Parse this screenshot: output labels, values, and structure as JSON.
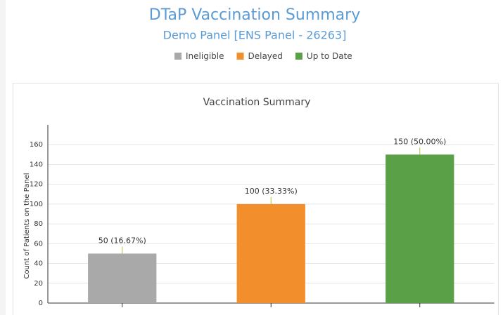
{
  "title": "DTaP Vaccination Summary",
  "subtitle": "Demo Panel [ENS Panel - 26263]",
  "chart_data": {
    "type": "bar",
    "title": "Vaccination Summary",
    "y_label": "Count of Patients on the Panel",
    "series": [
      {
        "name": "Ineligible",
        "color": "#a9a9a9",
        "values": [
          50
        ],
        "value_labels": [
          "50 (16.67%)"
        ]
      },
      {
        "name": "Delayed",
        "color": "#f28f2c",
        "values": [
          100
        ],
        "value_labels": [
          "100 (33.33%)"
        ]
      },
      {
        "name": "Up to Date",
        "color": "#59a046",
        "values": [
          150
        ],
        "value_labels": [
          "150 (50.00%)"
        ]
      }
    ],
    "ylim": [
      0,
      180
    ],
    "yticks": [
      0,
      20,
      40,
      60,
      80,
      100,
      120,
      140,
      160
    ],
    "grid": true
  }
}
